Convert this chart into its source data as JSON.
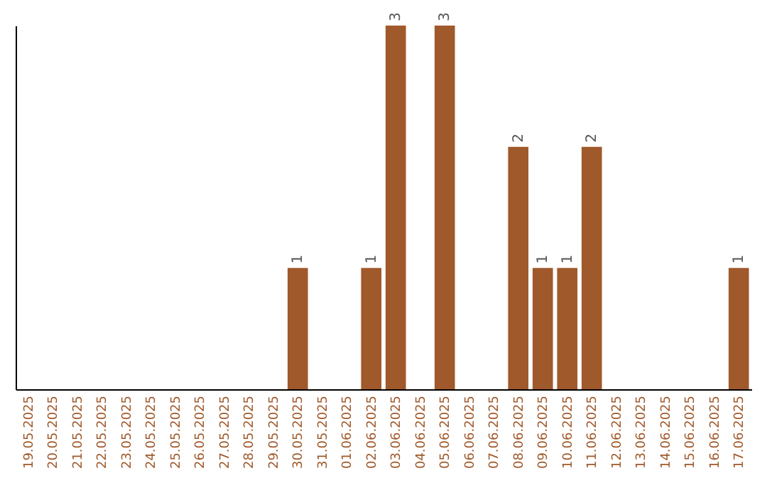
{
  "chart_data": {
    "type": "bar",
    "categories": [
      "19.05.2025",
      "20.05.2025",
      "21.05.2025",
      "22.05.2025",
      "23.05.2025",
      "24.05.2025",
      "25.05.2025",
      "26.05.2025",
      "27.05.2025",
      "28.05.2025",
      "29.05.2025",
      "30.05.2025",
      "31.05.2025",
      "01.06.2025",
      "02.06.2025",
      "03.06.2025",
      "04.06.2025",
      "05.06.2025",
      "06.06.2025",
      "07.06.2025",
      "08.06.2025",
      "09.06.2025",
      "10.06.2025",
      "11.06.2025",
      "12.06.2025",
      "13.06.2025",
      "14.06.2025",
      "15.06.2025",
      "16.06.2025",
      "17.06.2025"
    ],
    "values": [
      0,
      0,
      0,
      0,
      0,
      0,
      0,
      0,
      0,
      0,
      0,
      1,
      0,
      0,
      1,
      3,
      0,
      3,
      0,
      0,
      2,
      1,
      1,
      2,
      0,
      0,
      0,
      0,
      0,
      1
    ],
    "value_labels": [
      null,
      null,
      null,
      null,
      null,
      null,
      null,
      null,
      null,
      null,
      null,
      "1",
      null,
      null,
      "1",
      "3",
      null,
      "3",
      null,
      null,
      "2",
      "1",
      "1",
      "2",
      null,
      null,
      null,
      null,
      null,
      "1"
    ],
    "color": "#a0592b",
    "tick_labels": "x",
    "grid": false
  }
}
